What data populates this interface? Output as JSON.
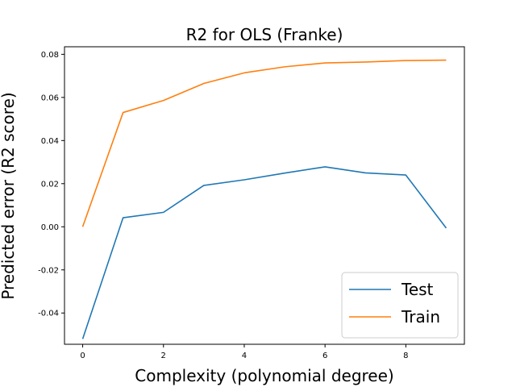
{
  "chart_data": {
    "type": "line",
    "title": "R2 for OLS (Franke)",
    "xlabel": "Complexity (polynomial degree)",
    "ylabel": "Predicted error (R2 score)",
    "xlim": [
      -0.45,
      9.45
    ],
    "ylim": [
      -0.0545,
      0.0835
    ],
    "xticks": [
      0,
      2,
      4,
      6,
      8
    ],
    "xtick_labels": [
      "0",
      "2",
      "4",
      "6",
      "8"
    ],
    "yticks": [
      -0.04,
      -0.02,
      0.0,
      0.02,
      0.04,
      0.06,
      0.08
    ],
    "ytick_labels": [
      "-0.04",
      "-0.02",
      "0.00",
      "0.02",
      "0.04",
      "0.06",
      "0.08"
    ],
    "x": [
      0,
      1,
      2,
      3,
      4,
      5,
      6,
      7,
      8,
      9
    ],
    "series": [
      {
        "name": "Test",
        "color": "#1f77b4",
        "values": [
          -0.052,
          0.0042,
          0.0067,
          0.0192,
          0.0218,
          0.0249,
          0.0278,
          0.025,
          0.024,
          -0.0006
        ]
      },
      {
        "name": "Train",
        "color": "#ff7f0e",
        "values": [
          0.0,
          0.053,
          0.0586,
          0.0665,
          0.0714,
          0.0742,
          0.076,
          0.0764,
          0.0771,
          0.0773
        ]
      }
    ],
    "grid": false,
    "legend_position": "lower-right"
  }
}
